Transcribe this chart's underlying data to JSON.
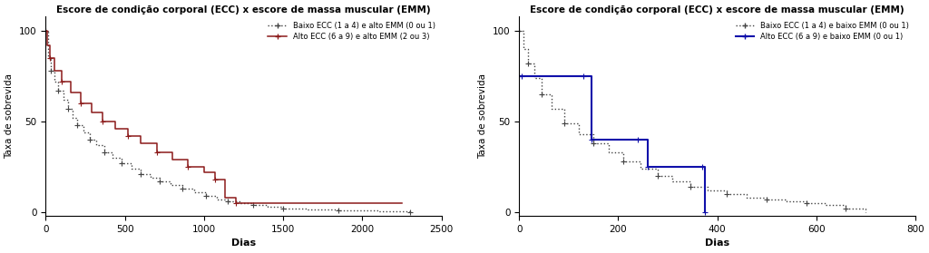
{
  "title": "Escore de condição corporal (ECC) x escore de massa muscular (EMM)",
  "ylabel": "Taxa de sobrevida",
  "xlabel": "Dias",
  "background_color": "#ffffff",
  "chart_A": {
    "xlim": [
      0,
      2500
    ],
    "ylim": [
      -2,
      108
    ],
    "xticks": [
      0,
      500,
      1000,
      1500,
      2000,
      2500
    ],
    "yticks": [
      0,
      50,
      100
    ],
    "legend1": "Baixo ECC (1 a 4) e alto EMM (0 ou 1)",
    "legend2": "Alto ECC (6 a 9) e alto EMM (2 ou 3)",
    "color1": "#444444",
    "color2": "#8B1A1A",
    "line1_x": [
      0,
      15,
      30,
      55,
      80,
      110,
      140,
      170,
      200,
      240,
      280,
      320,
      370,
      420,
      480,
      540,
      600,
      660,
      720,
      790,
      860,
      940,
      1010,
      1080,
      1150,
      1230,
      1310,
      1400,
      1500,
      1650,
      1850,
      2100,
      2300
    ],
    "line1_y": [
      100,
      85,
      78,
      72,
      67,
      62,
      57,
      52,
      48,
      44,
      40,
      37,
      33,
      30,
      27,
      24,
      21,
      19,
      17,
      15,
      13,
      11,
      9,
      7,
      6,
      5,
      4,
      3,
      2,
      1.5,
      1,
      0.5,
      0
    ],
    "line2_x": [
      0,
      10,
      25,
      55,
      100,
      160,
      220,
      290,
      360,
      440,
      520,
      600,
      700,
      800,
      900,
      1000,
      1070,
      1130,
      1200,
      2250
    ],
    "line2_y": [
      100,
      92,
      85,
      78,
      72,
      66,
      60,
      55,
      50,
      46,
      42,
      38,
      33,
      29,
      25,
      22,
      18,
      8,
      5,
      5
    ]
  },
  "chart_B": {
    "xlim": [
      0,
      800
    ],
    "ylim": [
      -2,
      108
    ],
    "xticks": [
      0,
      200,
      400,
      600,
      800
    ],
    "yticks": [
      0,
      50,
      100
    ],
    "legend1": "Baixo ECC (1 a 4) e baixo EMM (0 ou 1)",
    "legend2": "Alto ECC (6 a 9) e baixo EMM (0 ou 1)",
    "color1": "#444444",
    "color2": "#1010AA",
    "line1_x": [
      0,
      8,
      18,
      30,
      45,
      65,
      90,
      120,
      150,
      180,
      210,
      245,
      280,
      310,
      345,
      380,
      420,
      460,
      500,
      540,
      580,
      620,
      660,
      700
    ],
    "line1_y": [
      100,
      90,
      82,
      74,
      65,
      57,
      49,
      43,
      38,
      33,
      28,
      24,
      20,
      17,
      14,
      12,
      10,
      8,
      7,
      6,
      5,
      4,
      2,
      0
    ],
    "line2_x": [
      0,
      5,
      130,
      145,
      240,
      260,
      370,
      375
    ],
    "line2_y": [
      75,
      75,
      75,
      40,
      40,
      25,
      25,
      0
    ]
  }
}
